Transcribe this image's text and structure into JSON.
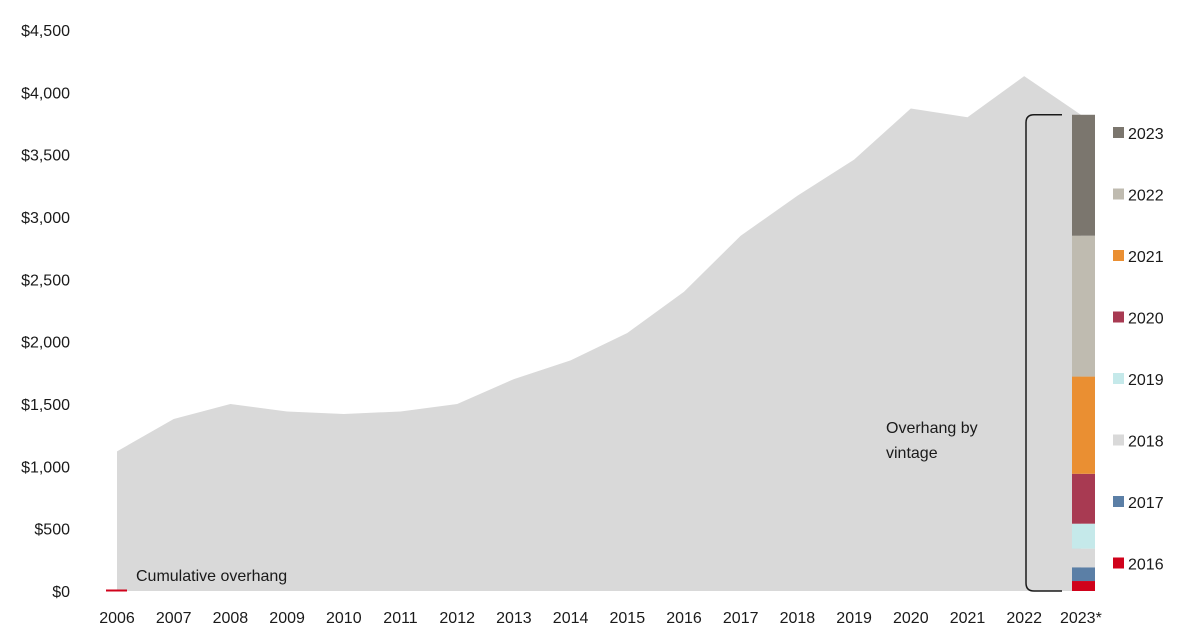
{
  "chart_data": {
    "type": "area",
    "title": "",
    "xlabel": "",
    "ylabel": "",
    "ylim": [
      0,
      4500
    ],
    "y_ticks": [
      "$0",
      "$500",
      "$1,000",
      "$1,500",
      "$2,000",
      "$2,500",
      "$3,000",
      "$3,500",
      "$4,000",
      "$4,500"
    ],
    "y_tick_values": [
      0,
      500,
      1000,
      1500,
      2000,
      2500,
      3000,
      3500,
      4000,
      4500
    ],
    "categories": [
      "2006",
      "2007",
      "2008",
      "2009",
      "2010",
      "2011",
      "2012",
      "2013",
      "2014",
      "2015",
      "2016",
      "2017",
      "2018",
      "2019",
      "2020",
      "2021",
      "2022",
      "2023*"
    ],
    "series": [
      {
        "name": "Cumulative overhang",
        "color": "#d9d9d9",
        "values": [
          1120,
          1380,
          1500,
          1440,
          1420,
          1440,
          1500,
          1700,
          1850,
          2070,
          2400,
          2850,
          3170,
          3460,
          3870,
          3800,
          4130,
          3820
        ]
      }
    ],
    "stacked_bar": {
      "category": "2023*",
      "segments": [
        {
          "label": "2016",
          "value": 80,
          "color": "#d0021b"
        },
        {
          "label": "2017",
          "value": 110,
          "color": "#5b7fa6"
        },
        {
          "label": "2018",
          "value": 150,
          "color": "#d9d9d9"
        },
        {
          "label": "2019",
          "value": 200,
          "color": "#c5e9ea"
        },
        {
          "label": "2020",
          "value": 400,
          "color": "#a83a52"
        },
        {
          "label": "2021",
          "value": 780,
          "color": "#ea8f32"
        },
        {
          "label": "2022",
          "value": 1130,
          "color": "#bfbbb0"
        },
        {
          "label": "2023",
          "value": 970,
          "color": "#7b766e"
        }
      ]
    },
    "legend": [
      "2023",
      "2022",
      "2021",
      "2020",
      "2019",
      "2018",
      "2017",
      "2016"
    ],
    "legend_position": "right",
    "annotations": {
      "area_label": "Cumulative overhang",
      "bracket_label_line1": "Overhang by",
      "bracket_label_line2": "vintage"
    },
    "grid": false
  }
}
